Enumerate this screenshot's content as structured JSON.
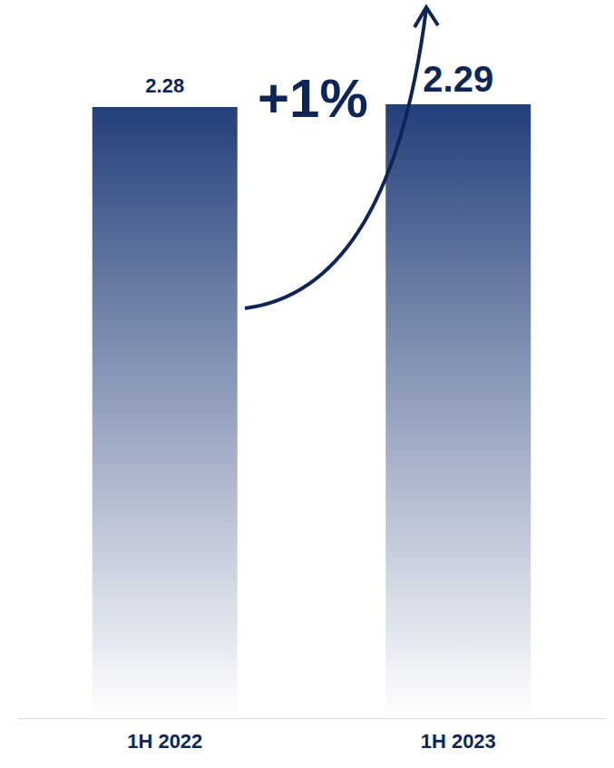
{
  "chart_data": {
    "type": "bar",
    "categories": [
      "1H 2022",
      "1H 2023"
    ],
    "values": [
      2.28,
      2.29
    ],
    "color": "#233f7a",
    "ylim": [
      0,
      2.3
    ],
    "data_labels": true,
    "tick_labels": "x",
    "grid": false,
    "annotation": "+1%"
  }
}
